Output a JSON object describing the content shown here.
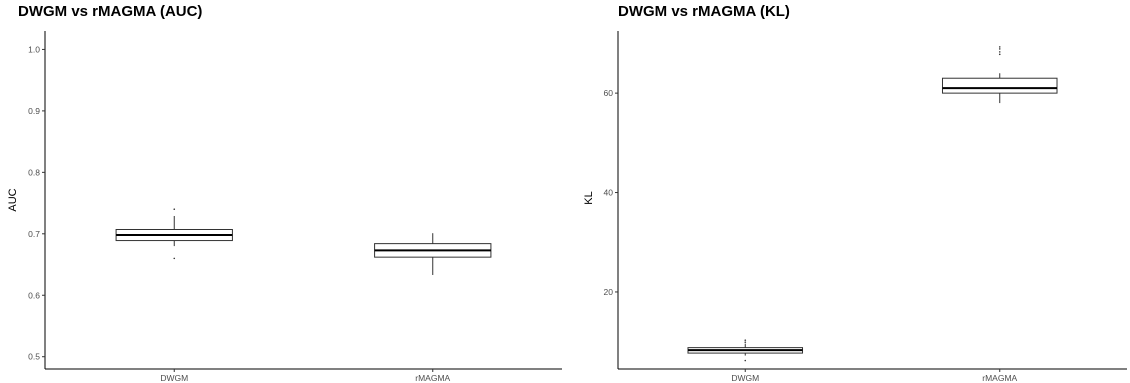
{
  "chart_data": [
    {
      "type": "box",
      "title": "DWGM vs rMAGMA (AUC)",
      "xlabel": "",
      "ylabel": "AUC",
      "ylim": [
        0.48,
        1.03
      ],
      "yticks": [
        "0.5",
        "0.6",
        "0.7",
        "0.8",
        "0.9",
        "1.0"
      ],
      "ytick_values": [
        0.5,
        0.6,
        0.7,
        0.8,
        0.9,
        1.0
      ],
      "categories": [
        "DWGM",
        "rMAGMA"
      ],
      "boxes": [
        {
          "category": "DWGM",
          "whisker_low": 0.68,
          "q1": 0.689,
          "median": 0.698,
          "q3": 0.707,
          "whisker_high": 0.729,
          "outliers": [
            0.66,
            0.74
          ]
        },
        {
          "category": "rMAGMA",
          "whisker_low": 0.633,
          "q1": 0.662,
          "median": 0.673,
          "q3": 0.684,
          "whisker_high": 0.701,
          "outliers": []
        }
      ],
      "grid": false,
      "legend": "none"
    },
    {
      "type": "box",
      "title": "DWGM vs rMAGMA (KL)",
      "xlabel": "",
      "ylabel": "KL",
      "ylim": [
        4.5,
        72.5
      ],
      "yticks": [
        "20",
        "40",
        "60"
      ],
      "ytick_values": [
        20,
        40,
        60
      ],
      "categories": [
        "DWGM",
        "rMAGMA"
      ],
      "boxes": [
        {
          "category": "DWGM",
          "whisker_low": 7.2,
          "q1": 7.7,
          "median": 8.3,
          "q3": 8.8,
          "whisker_high": 9.6,
          "outliers": [
            6.2,
            9.9,
            10.3
          ]
        },
        {
          "category": "rMAGMA",
          "whisker_low": 58.0,
          "q1": 60.0,
          "median": 61.0,
          "q3": 63.0,
          "whisker_high": 64.0,
          "outliers": [
            67.8,
            68.3,
            68.9,
            69.3
          ]
        }
      ],
      "grid": false,
      "legend": "none"
    }
  ]
}
